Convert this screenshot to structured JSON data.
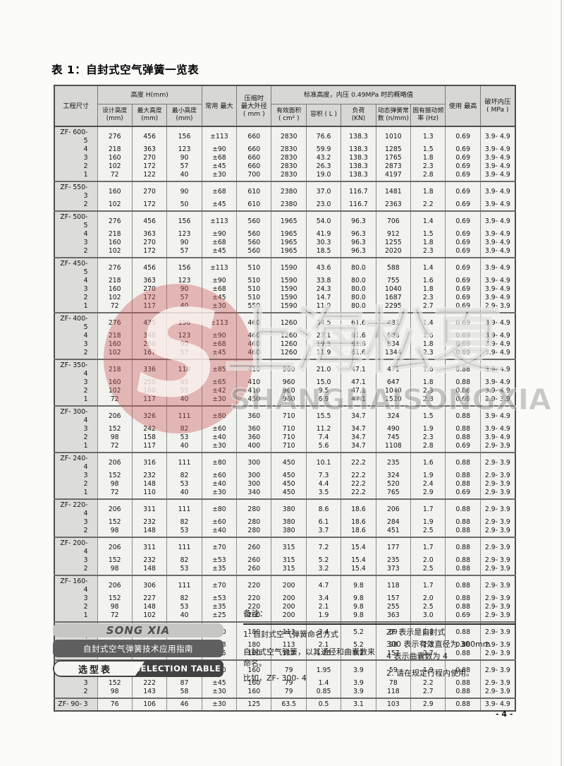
{
  "page": {
    "title": "表 1：自封式空气弹簧一览表",
    "page_number": "- 4 -"
  },
  "watermark": {
    "letter": "S",
    "text_cn": "上海松夏",
    "text_en": "SHANGHAISONGXIA",
    "circle_color": "#cb5c5c"
  },
  "table": {
    "header": {
      "project": "工程尺寸",
      "height_group": "高度 H(mm)",
      "design_height": "设计高度\n(mm)",
      "max_height": "最大高度\n(mm)",
      "min_height": "最小高度\n(mm)",
      "common_stroke": "常用 最大",
      "compressed_od": "压缩时\n最大外径\n( mm )",
      "standard_group": "标准高度，内压 0.49MPa 时的概略值",
      "effective_area": "有效面积\n( cm² )",
      "volume": "容积 ( L )",
      "load": "负荷\n(KN)",
      "spring_constant": "动态弹簧常\n数 (n/mm)",
      "natural_frequency": "固有振动频\n率 (Hz)",
      "max_use": "使用 最高",
      "burst_pressure": "破坏内压\n( MPa )"
    },
    "sections": [
      {
        "rows": [
          [
            "ZF- 600- 5",
            "276",
            "456",
            "156",
            "±113",
            "660",
            "2830",
            "76.6",
            "138.3",
            "1010",
            "1.3",
            "0.69",
            "3.9- 4.9"
          ],
          [
            "4",
            "218",
            "363",
            "123",
            "±90",
            "660",
            "2830",
            "59.9",
            "138.3",
            "1285",
            "1.5",
            "0.69",
            "3.9- 4.9"
          ],
          [
            "3",
            "160",
            "270",
            "90",
            "±68",
            "660",
            "2830",
            "43.2",
            "138.3",
            "1765",
            "1.8",
            "0.69",
            "3.9- 4.9"
          ],
          [
            "2",
            "102",
            "172",
            "57",
            "±45",
            "660",
            "2830",
            "26.3",
            "138.3",
            "2873",
            "2.3",
            "0.69",
            "3.9- 4.9"
          ],
          [
            "1",
            "72",
            "122",
            "40",
            "±30",
            "700",
            "2830",
            "19.0",
            "138.3",
            "4197",
            "2.8",
            "0.69",
            "3.9- 4.9"
          ]
        ]
      },
      {
        "rows": [
          [
            "ZF- 550- 3",
            "160",
            "270",
            "90",
            "±68",
            "610",
            "2380",
            "37.0",
            "116.7",
            "1481",
            "1.8",
            "0.69",
            "3.9- 4.9"
          ],
          [
            "2",
            "102",
            "172",
            "50",
            "±45",
            "610",
            "2380",
            "23.0",
            "116.7",
            "2363",
            "2.2",
            "0.69",
            "3.9- 4.9"
          ]
        ]
      },
      {
        "rows": [
          [
            "ZF- 500- 5",
            "276",
            "456",
            "156",
            "±113",
            "560",
            "1965",
            "54.0",
            "96.3",
            "706",
            "1.4",
            "0.69",
            "3.9- 4.9"
          ],
          [
            "4",
            "218",
            "363",
            "123",
            "±90",
            "560",
            "1965",
            "41.9",
            "96.3",
            "912",
            "1.5",
            "0.69",
            "3.9- 4.9"
          ],
          [
            "3",
            "160",
            "270",
            "90",
            "±68",
            "560",
            "1965",
            "30.3",
            "96.3",
            "1255",
            "1.8",
            "0.69",
            "3.9- 4.9"
          ],
          [
            "2",
            "102",
            "172",
            "57",
            "±45",
            "560",
            "1965",
            "18.5",
            "96.3",
            "2020",
            "2.3",
            "0.69",
            "3.9- 4.9"
          ]
        ]
      },
      {
        "rows": [
          [
            "ZF- 450- 5",
            "276",
            "456",
            "156",
            "±113",
            "510",
            "1590",
            "43.6",
            "80.0",
            "588",
            "1.4",
            "0.69",
            "3.9- 4.9"
          ],
          [
            "4",
            "218",
            "363",
            "123",
            "±90",
            "510",
            "1590",
            "33.8",
            "80.0",
            "755",
            "1.6",
            "0.69",
            "3.9- 4.9"
          ],
          [
            "3",
            "160",
            "270",
            "90",
            "±68",
            "510",
            "1590",
            "24.3",
            "80.0",
            "1040",
            "1.8",
            "0.69",
            "3.9- 4.9"
          ],
          [
            "2",
            "102",
            "172",
            "57",
            "±45",
            "510",
            "1590",
            "14.7",
            "80.0",
            "1687",
            "2.3",
            "0.69",
            "3.9- 4.9"
          ],
          [
            "1",
            "72",
            "117",
            "40",
            "±30",
            "550",
            "1590",
            "11.9",
            "80.0",
            "2295",
            "2.7",
            "0.69",
            "2.9- 3.9"
          ]
        ]
      },
      {
        "rows": [
          [
            "ZF- 400- 5",
            "276",
            "435",
            "156",
            "±113",
            "460",
            "1260",
            "34.5",
            "61.6",
            "481",
            "1.4",
            "0.69",
            "3.9- 4.9"
          ],
          [
            "4",
            "218",
            "348",
            "123",
            "±90",
            "460",
            "1260",
            "27.1",
            "61.6",
            "608",
            "1.6",
            "0.69",
            "3.9- 4.9"
          ],
          [
            "3",
            "160",
            "260",
            "90",
            "±68",
            "460",
            "1260",
            "19.5",
            "61.6",
            "834",
            "1.8",
            "0.69",
            "3.9- 4.9"
          ],
          [
            "2",
            "102",
            "167",
            "57",
            "±45",
            "460",
            "1260",
            "11.9",
            "61.6",
            "1344",
            "2.3",
            "0.69",
            "3.9- 4.9"
          ]
        ]
      },
      {
        "rows": [
          [
            "ZF- 350- 4",
            "218",
            "336",
            "118",
            "±85",
            "410",
            "960",
            "21.0",
            "47.1",
            "471",
            "1.6",
            "0.88",
            "3.9- 4.9"
          ],
          [
            "3",
            "160",
            "250",
            "85",
            "±65",
            "410",
            "960",
            "15.0",
            "47.1",
            "647",
            "1.8",
            "0.88",
            "3.9- 4.9"
          ],
          [
            "2",
            "102",
            "160",
            "55",
            "±42",
            "410",
            "960",
            "9.5",
            "47.1",
            "1040",
            "2.3",
            "0.88",
            "3.9- 4.9"
          ],
          [
            "1",
            "72",
            "117",
            "40",
            "±30",
            "450",
            "960",
            "6.9",
            "47.1",
            "1520",
            "2.8",
            "0.69",
            "2.9- 3.9"
          ]
        ]
      },
      {
        "rows": [
          [
            "ZF- 300- 4",
            "206",
            "326",
            "111",
            "±80",
            "360",
            "710",
            "15.5",
            "34.7",
            "324",
            "1.5",
            "0.88",
            "3.9- 4.9"
          ],
          [
            "3",
            "152",
            "242",
            "82",
            "±60",
            "360",
            "710",
            "11.2",
            "34.7",
            "490",
            "1.9",
            "0.88",
            "3.9- 4.9"
          ],
          [
            "2",
            "98",
            "158",
            "53",
            "±40",
            "360",
            "710",
            "7.4",
            "34.7",
            "745",
            "2.3",
            "0.88",
            "3.9- 4.9"
          ],
          [
            "1",
            "72",
            "117",
            "40",
            "±30",
            "400",
            "710",
            "5.6",
            "34.7",
            "1108",
            "2.8",
            "0.69",
            "2.9- 3.9"
          ]
        ]
      },
      {
        "rows": [
          [
            "ZF- 240- 4",
            "206",
            "316",
            "111",
            "±80",
            "300",
            "450",
            "10.1",
            "22.2",
            "235",
            "1.6",
            "0.88",
            "2.9- 3.9"
          ],
          [
            "3",
            "152",
            "232",
            "82",
            "±60",
            "300",
            "450",
            "7.3",
            "22.2",
            "324",
            "1.9",
            "0.88",
            "2.9- 3.9"
          ],
          [
            "2",
            "98",
            "148",
            "53",
            "±40",
            "300",
            "450",
            "4.4",
            "22.2",
            "520",
            "2.4",
            "0.88",
            "2.9- 3.9"
          ],
          [
            "1",
            "72",
            "110",
            "40",
            "±30",
            "340",
            "450",
            "3.5",
            "22.2",
            "765",
            "2.9",
            "0.69",
            "2.9- 3.9"
          ]
        ]
      },
      {
        "rows": [
          [
            "ZF- 220- 4",
            "206",
            "311",
            "111",
            "±80",
            "280",
            "380",
            "8.6",
            "18.6",
            "206",
            "1.7",
            "0.88",
            "2.9- 3.9"
          ],
          [
            "3",
            "152",
            "232",
            "82",
            "±60",
            "280",
            "380",
            "6.1",
            "18.6",
            "284",
            "1.9",
            "0.88",
            "2.9- 3.9"
          ],
          [
            "2",
            "98",
            "148",
            "53",
            "±40",
            "280",
            "380",
            "3.7",
            "18.6",
            "451",
            "2.5",
            "0.88",
            "2.9- 3.9"
          ]
        ]
      },
      {
        "rows": [
          [
            "ZF- 200- 4",
            "206",
            "311",
            "111",
            "±70",
            "260",
            "315",
            "7.2",
            "15.4",
            "177",
            "1.7",
            "0.88",
            "2.9- 3.9"
          ],
          [
            "3",
            "152",
            "232",
            "82",
            "±53",
            "260",
            "315",
            "5.2",
            "15.4",
            "235",
            "2.0",
            "0.88",
            "2.9- 3.9"
          ],
          [
            "2",
            "98",
            "148",
            "53",
            "±35",
            "260",
            "315",
            "3.2",
            "15.4",
            "373",
            "2.5",
            "0.88",
            "2.9- 3.9"
          ]
        ]
      },
      {
        "rows": [
          [
            "ZF- 160- 4",
            "206",
            "306",
            "111",
            "±70",
            "220",
            "200",
            "4.7",
            "9.8",
            "118",
            "1.7",
            "0.88",
            "2.9- 3.9"
          ],
          [
            "3",
            "152",
            "227",
            "82",
            "±53",
            "220",
            "200",
            "3.4",
            "9.8",
            "157",
            "2.0",
            "0.88",
            "2.9- 3.9"
          ],
          [
            "2",
            "98",
            "148",
            "53",
            "±35",
            "220",
            "200",
            "2.1",
            "9.8",
            "255",
            "2.5",
            "0.88",
            "2.9- 3.9"
          ],
          [
            "1",
            "72",
            "102",
            "40",
            "±25",
            "260",
            "200",
            "1.9",
            "9.8",
            "363",
            "3.0",
            "0.69",
            "2.9- 3.9"
          ]
        ]
      },
      {
        "rows": [
          [
            "ZF- 120- 4",
            "206",
            "306",
            "111",
            "±70",
            "180",
            "113",
            "3.4",
            "5.2",
            "69",
            "1.8",
            "0.88",
            "2.9- 3.9"
          ],
          [
            "3",
            "152",
            "227",
            "82",
            "±53",
            "180",
            "113",
            "2.1",
            "5.2",
            "98",
            "2.2",
            "0.88",
            "2.9- 3.9"
          ],
          [
            "2",
            "98",
            "148",
            "53",
            "±35",
            "180",
            "113",
            "1.25",
            "5.2",
            "157",
            "2.7",
            "0.88",
            "2.9- 3.9"
          ]
        ]
      },
      {
        "rows": [
          [
            "ZF- 100- 4",
            "206",
            "296",
            "121",
            "±60",
            "160",
            "79",
            "1.95",
            "3.9",
            "59",
            "1.9",
            "0.88",
            "2.9- 3.9"
          ],
          [
            "3",
            "152",
            "222",
            "87",
            "±45",
            "160",
            "79",
            "1.4",
            "3.9",
            "78",
            "2.2",
            "0.88",
            "2.9- 3.9"
          ],
          [
            "2",
            "98",
            "143",
            "58",
            "±30",
            "160",
            "79",
            "0.85",
            "3.9",
            "118",
            "2.7",
            "0.88",
            "2.9- 3.9"
          ]
        ]
      },
      {
        "rows": [
          [
            "ZF- 90- 3",
            "76",
            "106",
            "46",
            "±30",
            "125",
            "63.5",
            "0.5",
            "3.1",
            "103",
            "2.9",
            "0.88",
            "3.9- 4.9"
          ]
        ]
      }
    ]
  },
  "footer": {
    "banners": {
      "brand": "SONG XIA",
      "guide": "自封式空气弹簧技术应用指南",
      "selection_cn": "选型表",
      "selection_en": "SELECTION TABLE"
    },
    "notes": {
      "title": "备注：",
      "item1": "1. 自封式空气弹簧命名方式",
      "item1_body": "自封式空气弹簧，以其通径和曲囊数来命名。",
      "item1_example": "比如，ZF- 300- 4",
      "right1": "ZF 表示是自封式",
      "right2": "300 表示有效直径为 300mm",
      "right3": "4 表示曲囊数为 4",
      "item2": "2. 请在规定行程内使用。"
    }
  }
}
